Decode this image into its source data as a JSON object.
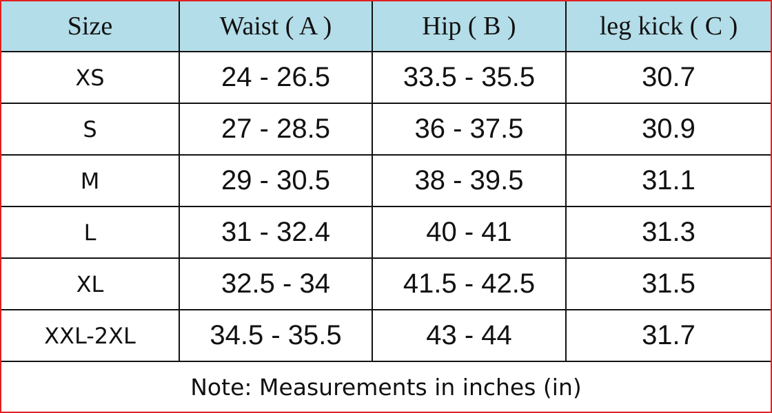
{
  "table": {
    "header": [
      "Size",
      "Waist ( A )",
      "Hip ( B )",
      "leg kick ( C )"
    ],
    "rows": [
      [
        "XS",
        "24 - 26.5",
        "33.5 - 35.5",
        "30.7"
      ],
      [
        "S",
        "27 - 28.5",
        "36 - 37.5",
        "30.9"
      ],
      [
        "M",
        "29 - 30.5",
        "38 - 39.5",
        "31.1"
      ],
      [
        "L",
        "31 - 32.4",
        "40 - 41",
        "31.3"
      ],
      [
        "XL",
        "32.5 - 34",
        "41.5 - 42.5",
        "31.5"
      ],
      [
        "XXL-2XL",
        "34.5 - 35.5",
        "43 - 44",
        "31.7"
      ]
    ],
    "note": "Note: Measurements in inches (in)"
  }
}
